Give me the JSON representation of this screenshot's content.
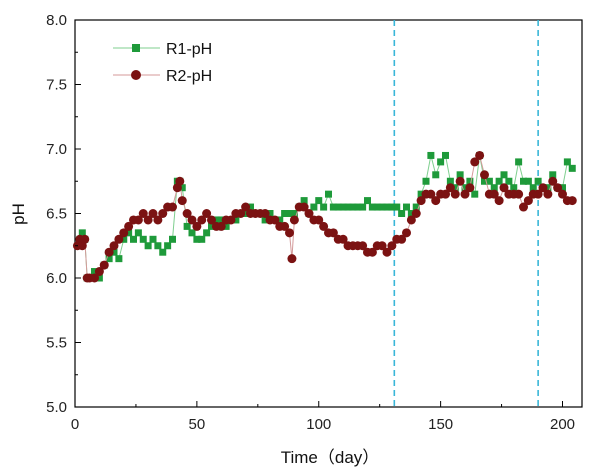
{
  "chart_data": {
    "type": "scatter",
    "xlabel": "Time（day）",
    "ylabel": "pH",
    "xlim": [
      0,
      208
    ],
    "ylim": [
      5.0,
      8.0
    ],
    "x_ticks": [
      0,
      50,
      100,
      150,
      200
    ],
    "x_tick_labels": [
      "0",
      "50",
      "100",
      "150",
      "200"
    ],
    "y_ticks": [
      5.0,
      5.5,
      6.0,
      6.5,
      7.0,
      7.5,
      8.0
    ],
    "y_tick_labels": [
      "5.0",
      "5.5",
      "6.0",
      "6.5",
      "7.0",
      "7.5",
      "8.0"
    ],
    "grid": false,
    "legend_position": "top-left",
    "vertical_reference_lines": [
      131,
      190
    ],
    "colors": {
      "r1": "#1e9a3a",
      "r1_line": "#7fcf8f",
      "r2": "#7b1212",
      "r2_line": "#d49a9a",
      "ref_line": "#39b6d8"
    },
    "series": [
      {
        "name": "R1-pH",
        "marker": "square",
        "x": [
          2,
          3,
          4,
          5,
          6,
          8,
          10,
          12,
          14,
          16,
          18,
          20,
          22,
          24,
          26,
          28,
          30,
          32,
          34,
          36,
          38,
          40,
          42,
          43,
          44,
          46,
          48,
          50,
          52,
          54,
          56,
          58,
          60,
          62,
          64,
          66,
          68,
          70,
          72,
          74,
          76,
          78,
          80,
          82,
          84,
          86,
          88,
          90,
          92,
          94,
          96,
          98,
          100,
          102,
          104,
          106,
          108,
          110,
          112,
          114,
          116,
          118,
          120,
          122,
          124,
          126,
          128,
          130,
          132,
          134,
          136,
          138,
          140,
          142,
          144,
          146,
          148,
          150,
          152,
          154,
          156,
          158,
          160,
          162,
          164,
          166,
          168,
          170,
          172,
          174,
          176,
          178,
          180,
          182,
          184,
          186,
          188,
          190,
          192,
          194,
          196,
          198,
          200,
          202,
          204
        ],
        "y": [
          6.3,
          6.35,
          6.3,
          6.0,
          6.0,
          6.05,
          6.0,
          6.1,
          6.15,
          6.2,
          6.15,
          6.3,
          6.35,
          6.3,
          6.35,
          6.3,
          6.25,
          6.3,
          6.25,
          6.2,
          6.25,
          6.3,
          6.75,
          6.75,
          6.7,
          6.4,
          6.35,
          6.3,
          6.3,
          6.35,
          6.4,
          6.45,
          6.45,
          6.4,
          6.45,
          6.45,
          6.5,
          6.5,
          6.55,
          6.5,
          6.5,
          6.45,
          6.5,
          6.45,
          6.45,
          6.5,
          6.5,
          6.5,
          6.55,
          6.6,
          6.5,
          6.55,
          6.6,
          6.55,
          6.65,
          6.55,
          6.55,
          6.55,
          6.55,
          6.55,
          6.55,
          6.55,
          6.6,
          6.55,
          6.55,
          6.55,
          6.55,
          6.55,
          6.55,
          6.5,
          6.55,
          6.5,
          6.55,
          6.65,
          6.75,
          6.95,
          6.8,
          6.9,
          6.95,
          6.75,
          6.7,
          6.8,
          6.7,
          6.75,
          6.65,
          6.95,
          6.75,
          6.75,
          6.7,
          6.75,
          6.8,
          6.75,
          6.7,
          6.9,
          6.75,
          6.75,
          6.7,
          6.75,
          6.7,
          6.7,
          6.8,
          6.7,
          6.7,
          6.9,
          6.85
        ]
      },
      {
        "name": "R2-pH",
        "marker": "circle",
        "x": [
          1,
          2,
          3,
          4,
          5,
          6,
          8,
          10,
          12,
          14,
          16,
          18,
          20,
          22,
          24,
          26,
          28,
          30,
          32,
          34,
          36,
          38,
          40,
          42,
          43,
          44,
          46,
          48,
          50,
          52,
          54,
          56,
          58,
          60,
          62,
          64,
          66,
          68,
          70,
          72,
          74,
          76,
          78,
          80,
          82,
          84,
          86,
          88,
          89,
          90,
          92,
          94,
          96,
          98,
          100,
          102,
          104,
          106,
          108,
          110,
          112,
          114,
          116,
          118,
          120,
          122,
          124,
          126,
          128,
          130,
          132,
          134,
          136,
          138,
          140,
          142,
          144,
          146,
          148,
          150,
          152,
          154,
          156,
          158,
          160,
          162,
          164,
          166,
          168,
          170,
          172,
          174,
          176,
          178,
          180,
          182,
          184,
          186,
          188,
          190,
          192,
          194,
          196,
          198,
          200,
          202,
          204
        ],
        "y": [
          6.25,
          6.3,
          6.25,
          6.3,
          6.0,
          6.0,
          6.0,
          6.05,
          6.1,
          6.2,
          6.25,
          6.3,
          6.35,
          6.4,
          6.45,
          6.45,
          6.5,
          6.45,
          6.5,
          6.45,
          6.5,
          6.55,
          6.55,
          6.7,
          6.75,
          6.6,
          6.5,
          6.45,
          6.4,
          6.45,
          6.5,
          6.45,
          6.4,
          6.4,
          6.45,
          6.45,
          6.5,
          6.5,
          6.55,
          6.5,
          6.5,
          6.5,
          6.5,
          6.45,
          6.45,
          6.4,
          6.4,
          6.35,
          6.15,
          6.45,
          6.55,
          6.55,
          6.5,
          6.45,
          6.45,
          6.4,
          6.35,
          6.35,
          6.3,
          6.3,
          6.25,
          6.25,
          6.25,
          6.25,
          6.2,
          6.2,
          6.25,
          6.25,
          6.2,
          6.25,
          6.3,
          6.3,
          6.35,
          6.45,
          6.5,
          6.6,
          6.65,
          6.65,
          6.6,
          6.65,
          6.65,
          6.7,
          6.65,
          6.75,
          6.65,
          6.7,
          6.9,
          6.95,
          6.8,
          6.65,
          6.65,
          6.6,
          6.7,
          6.65,
          6.65,
          6.65,
          6.55,
          6.6,
          6.65,
          6.65,
          6.7,
          6.65,
          6.75,
          6.7,
          6.65,
          6.6,
          6.6
        ]
      }
    ]
  }
}
